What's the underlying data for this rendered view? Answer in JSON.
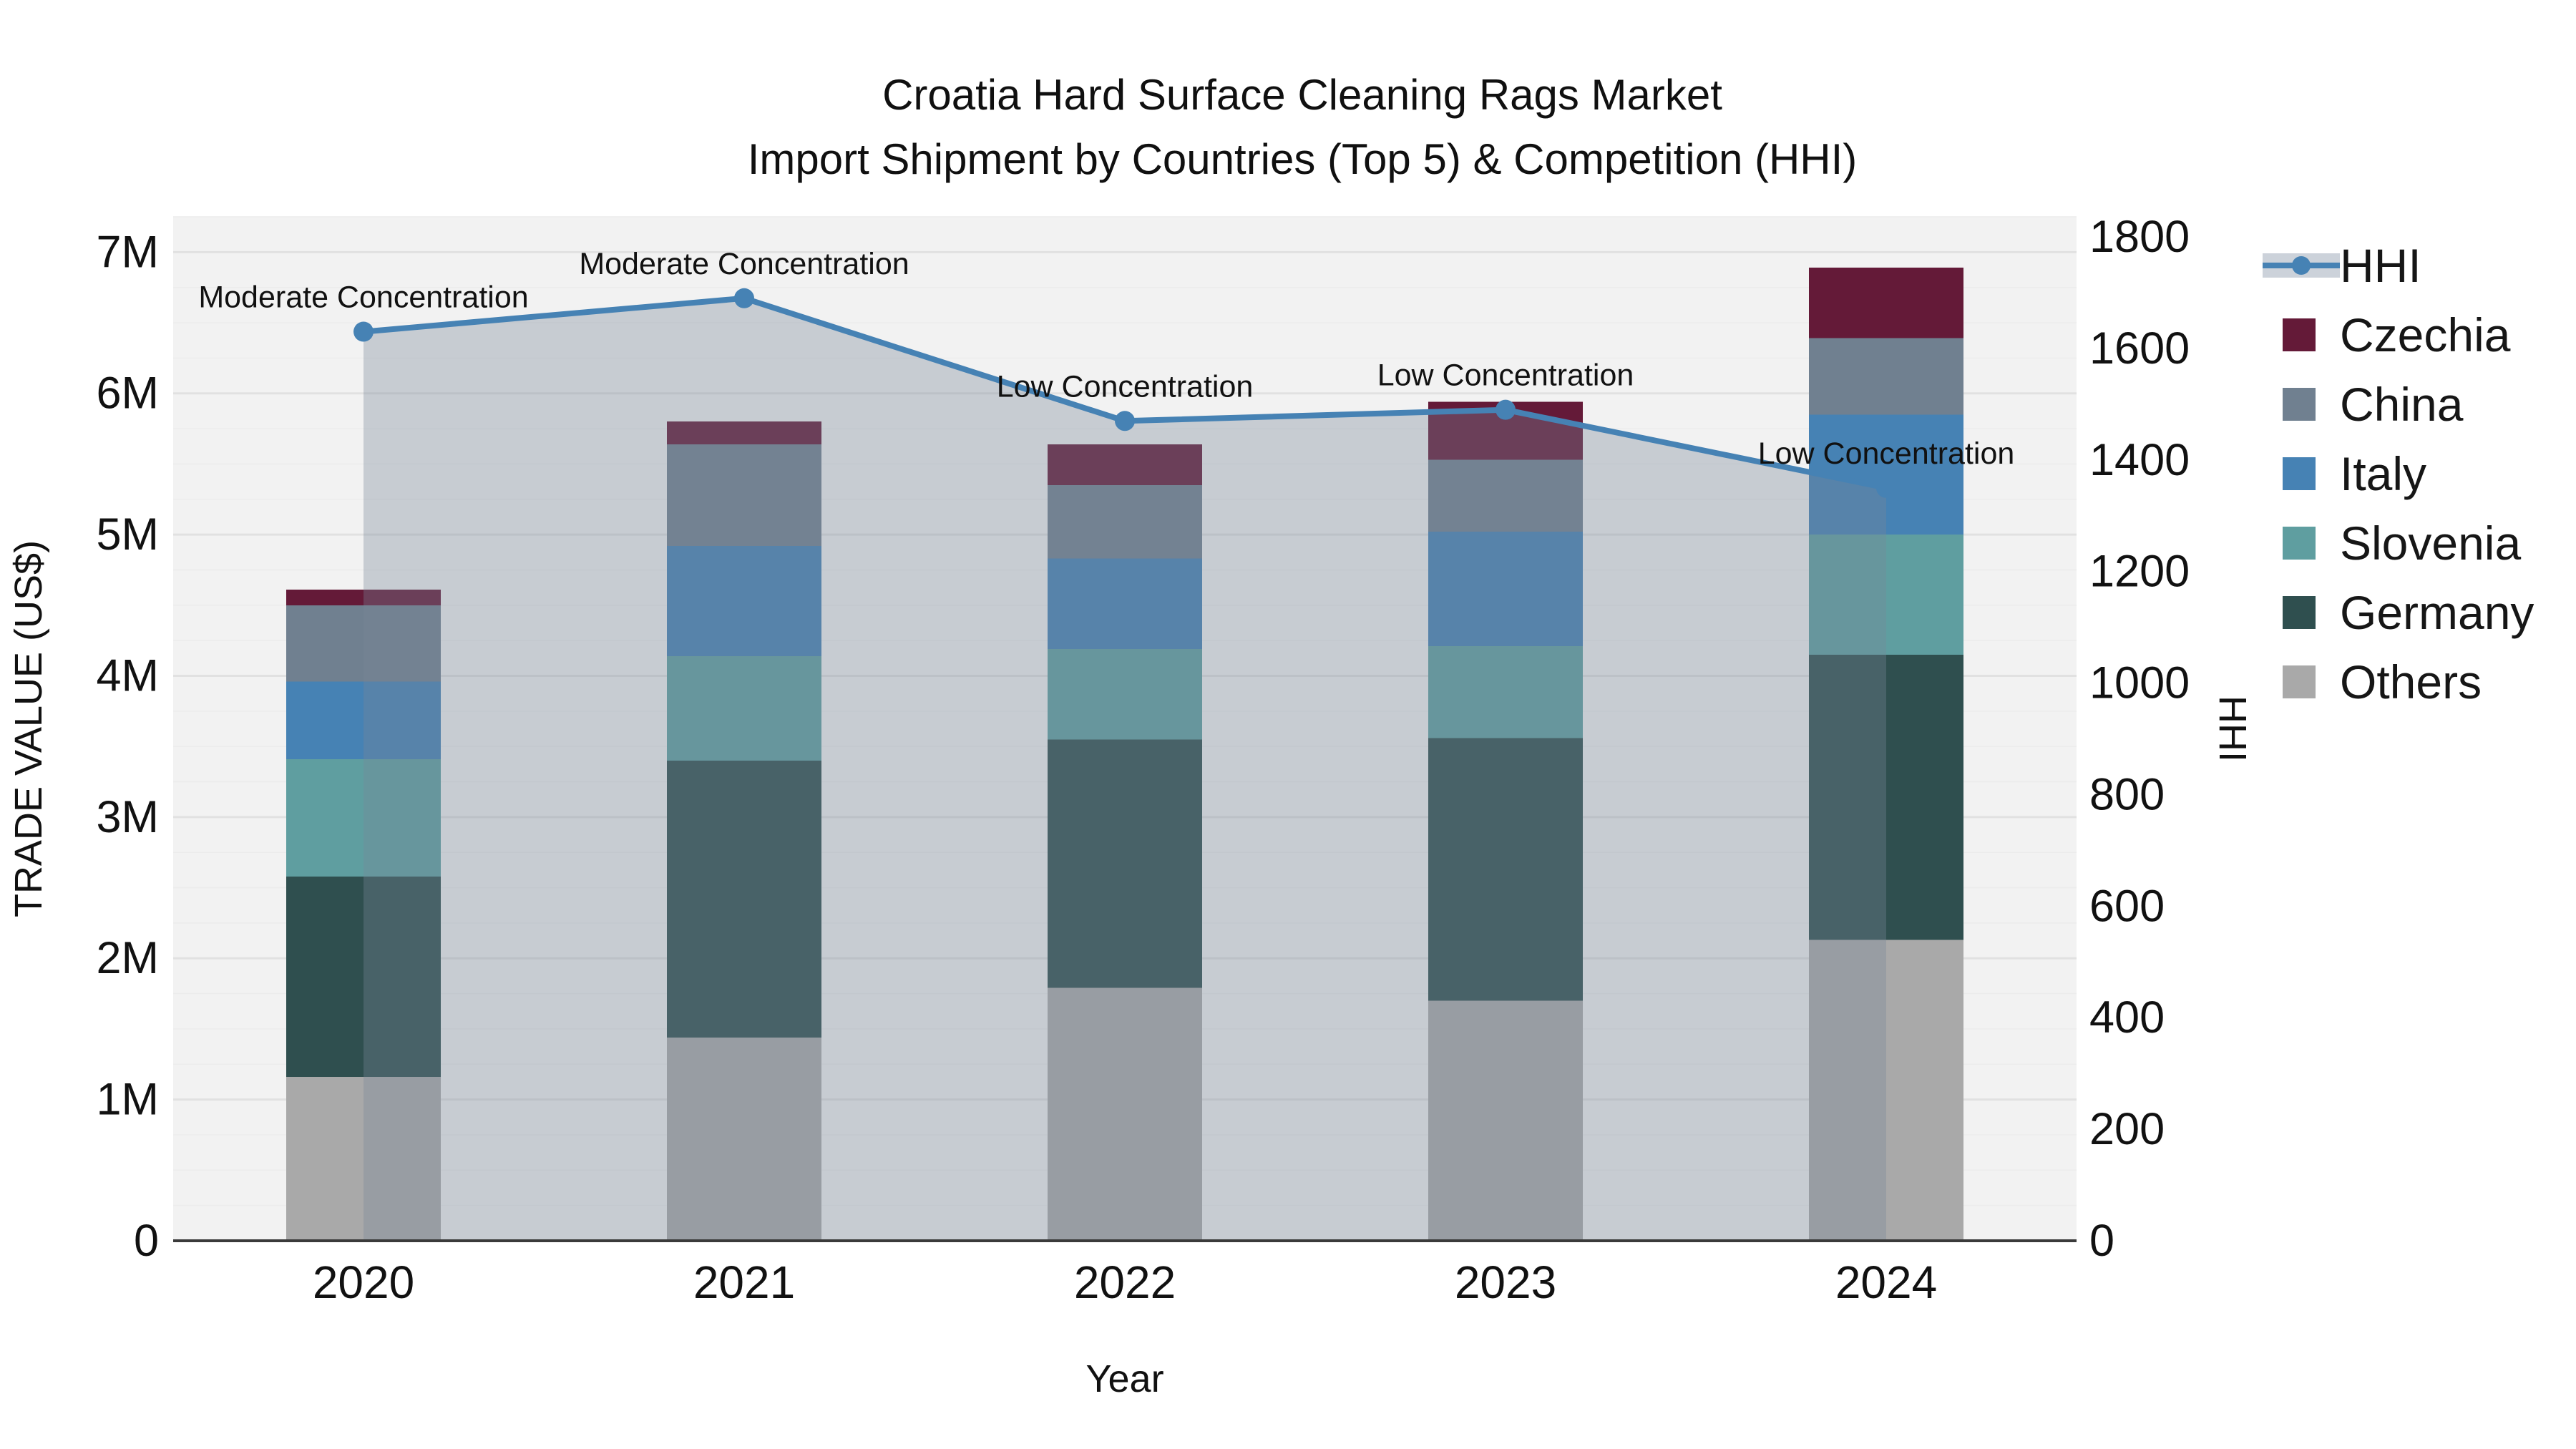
{
  "header": {
    "title_line1": "Croatia Hard Surface Cleaning Rags Market",
    "title_line2": "Import Shipment by Countries (Top 5) & Competition (HHI)"
  },
  "chart_data": {
    "type": "bar",
    "subtype": "stacked-bar-with-line",
    "title": "Croatia Hard Surface Cleaning Rags Market — Import Shipment by Countries (Top 5) & Competition (HHI)",
    "xlabel": "Year",
    "ylabel": "TRADE VALUE (US$)",
    "ylabel_right": "HHI",
    "categories": [
      "2020",
      "2021",
      "2022",
      "2023",
      "2024"
    ],
    "ylim_left": [
      0,
      7250000
    ],
    "ylim_right": [
      0,
      1836
    ],
    "left_ticks": [
      "0",
      "1M",
      "2M",
      "3M",
      "4M",
      "5M",
      "6M",
      "7M"
    ],
    "right_ticks": [
      "0",
      "200",
      "400",
      "600",
      "800",
      "1000",
      "1200",
      "1400",
      "1600",
      "1800"
    ],
    "grid": "on",
    "legend_position": "right",
    "series": [
      {
        "name": "Others",
        "color": "#a9a9a9",
        "values": [
          1160000,
          1440000,
          1790000,
          1700000,
          2130000
        ]
      },
      {
        "name": "Germany",
        "color": "#2f4f4f",
        "values": [
          1420000,
          1960000,
          1760000,
          1860000,
          2020000
        ]
      },
      {
        "name": "Slovenia",
        "color": "#5f9ea0",
        "values": [
          830000,
          740000,
          640000,
          650000,
          850000
        ]
      },
      {
        "name": "Italy",
        "color": "#4682b4",
        "values": [
          550000,
          780000,
          640000,
          810000,
          850000
        ]
      },
      {
        "name": "China",
        "color": "#708090",
        "values": [
          540000,
          720000,
          520000,
          510000,
          540000
        ]
      },
      {
        "name": "Czechia",
        "color": "#641a38",
        "values": [
          110000,
          160000,
          290000,
          410000,
          500000
        ]
      }
    ],
    "line_series": {
      "name": "HHI",
      "color": "#4682b4",
      "area_color": "#778899",
      "area_opacity": 0.35,
      "values": [
        1630,
        1690,
        1470,
        1490,
        1350
      ],
      "annotations": [
        "Moderate Concentration",
        "Moderate Concentration",
        "Low Concentration",
        "Low Concentration",
        "Low Concentration"
      ]
    },
    "totals": [
      4610000,
      5800000,
      5640000,
      5940000,
      6890000
    ]
  },
  "legend": {
    "items": [
      {
        "label": "HHI",
        "type": "line",
        "color": "#4682b4"
      },
      {
        "label": "Czechia",
        "type": "swatch",
        "color": "#641a38"
      },
      {
        "label": "China",
        "type": "swatch",
        "color": "#708090"
      },
      {
        "label": "Italy",
        "type": "swatch",
        "color": "#4682b4"
      },
      {
        "label": "Slovenia",
        "type": "swatch",
        "color": "#5f9ea0"
      },
      {
        "label": "Germany",
        "type": "swatch",
        "color": "#2f4f4f"
      },
      {
        "label": "Others",
        "type": "swatch",
        "color": "#a9a9a9"
      }
    ]
  },
  "style": {
    "plot_bg": "#f2f2f2",
    "grid_major": "#e1e1e1",
    "grid_minor": "#ececec",
    "axis_line": "#3a3a3a",
    "text_color": "#111111"
  }
}
